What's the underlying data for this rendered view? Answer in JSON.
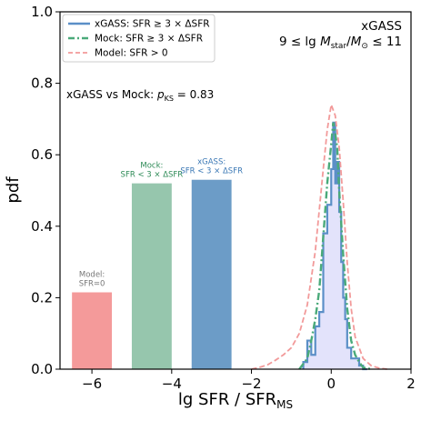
{
  "chart_data": {
    "type": "bar",
    "xlabel_main": "lg SFR / SFR",
    "xlabel_sub": "MS",
    "ylabel": "pdf",
    "xlim": [
      -6.8,
      2
    ],
    "ylim": [
      0,
      1.0
    ],
    "xticks": [
      -6,
      -4,
      -2,
      0,
      2
    ],
    "xtick_labels": [
      "−6",
      "−4",
      "−2",
      "0",
      "2"
    ],
    "yticks": [
      0.0,
      0.2,
      0.4,
      0.6,
      0.8,
      1.0
    ],
    "ytick_labels": [
      "0.0",
      "0.2",
      "0.4",
      "0.6",
      "0.8",
      "1.0"
    ],
    "corner_title": "xGASS",
    "corner_subtitle_parts": [
      "9 ≤ lg",
      "M",
      "star",
      "/",
      "M",
      "⊙",
      " ≤ 11"
    ],
    "annotation_main": "xGASS vs Mock:",
    "annotation_p": "p",
    "annotation_p_sub": "KS",
    "annotation_value": " = 0.83",
    "legend": [
      {
        "label": "xGASS: SFR ≥ 3 × ΔSFR",
        "color": "#5b8fc7",
        "style": "solid"
      },
      {
        "label": "Mock: SFR ≥ 3 × ΔSFR",
        "color": "#4aaa7a",
        "style": "dashdot"
      },
      {
        "label": "Model: SFR > 0",
        "color": "#f29a9a",
        "style": "dashed"
      }
    ],
    "bars": [
      {
        "name": "Model: SFR=0",
        "label_lines": [
          "Model:",
          "SFR=0"
        ],
        "x0": -6.5,
        "x1": -5.5,
        "value": 0.215,
        "color": "#f49a9a",
        "label_color": "#777777"
      },
      {
        "name": "Mock: SFR<3×ΔSFR",
        "label_lines": [
          "Mock:",
          "SFR < 3 × ΔSFR"
        ],
        "x0": -5.0,
        "x1": -4.0,
        "value": 0.52,
        "color": "#96c6ad",
        "label_color": "#2e8b57"
      },
      {
        "name": "xGASS: SFR<3×ΔSFR",
        "label_lines": [
          "xGASS:",
          "SFR < 3 × ΔSFR"
        ],
        "x0": -3.5,
        "x1": -2.5,
        "value": 0.53,
        "color": "#6c9cc7",
        "label_color": "#3b78b5"
      }
    ],
    "xgass_hist": {
      "edges": [
        -0.7,
        -0.6,
        -0.5,
        -0.4,
        -0.3,
        -0.2,
        -0.1,
        0.0,
        0.05,
        0.1,
        0.15,
        0.2,
        0.25,
        0.3,
        0.35,
        0.4,
        0.5,
        0.6,
        0.7,
        0.8,
        0.9
      ],
      "values": [
        0.02,
        0.08,
        0.04,
        0.12,
        0.16,
        0.38,
        0.46,
        0.56,
        0.69,
        0.52,
        0.58,
        0.44,
        0.3,
        0.2,
        0.14,
        0.06,
        0.03,
        0.03,
        0.01,
        0.0
      ],
      "color": "#5b8fc7",
      "fill": "#e3e3fb"
    },
    "mock_curve": {
      "x": [
        -0.8,
        -0.6,
        -0.5,
        -0.4,
        -0.3,
        -0.2,
        -0.1,
        0.0,
        0.05,
        0.1,
        0.15,
        0.2,
        0.3,
        0.4,
        0.5,
        0.6,
        0.7,
        0.8,
        1.0
      ],
      "y": [
        0.0,
        0.03,
        0.08,
        0.14,
        0.22,
        0.37,
        0.52,
        0.63,
        0.69,
        0.66,
        0.62,
        0.5,
        0.32,
        0.17,
        0.08,
        0.04,
        0.02,
        0.005,
        0.0
      ],
      "color": "#4aaa7a"
    },
    "model_curve": {
      "x": [
        -2.0,
        -1.8,
        -1.6,
        -1.4,
        -1.2,
        -1.0,
        -0.8,
        -0.6,
        -0.4,
        -0.2,
        -0.1,
        0.0,
        0.1,
        0.2,
        0.3,
        0.4,
        0.5,
        0.6,
        0.8,
        1.0,
        1.2,
        1.4
      ],
      "y": [
        0.0,
        0.005,
        0.012,
        0.025,
        0.04,
        0.06,
        0.1,
        0.18,
        0.33,
        0.56,
        0.67,
        0.74,
        0.71,
        0.62,
        0.47,
        0.3,
        0.17,
        0.09,
        0.03,
        0.01,
        0.003,
        0.0
      ],
      "color": "#f29a9a"
    }
  }
}
